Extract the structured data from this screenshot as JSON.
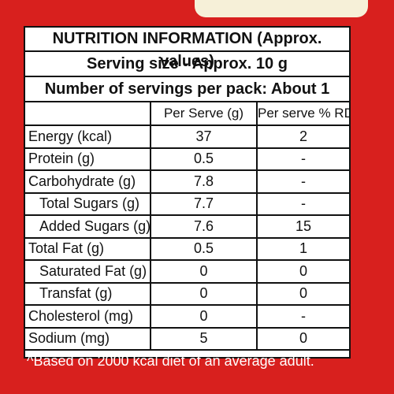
{
  "title": "NUTRITION INFORMATION (Approx. values)",
  "serving_size": "Serving size - Approx. 10 g",
  "servings_per_pack": "Number of servings per pack: About 1",
  "columns": [
    "",
    "Per Serve (g)",
    "Per serve % RDA^"
  ],
  "rows": [
    {
      "label": "Energy (kcal)",
      "per_serve": "37",
      "rda": "2",
      "indent": false
    },
    {
      "label": "Protein (g)",
      "per_serve": "0.5",
      "rda": "-",
      "indent": false
    },
    {
      "label": "Carbohydrate (g)",
      "per_serve": "7.8",
      "rda": "-",
      "indent": false
    },
    {
      "label": "Total Sugars (g)",
      "per_serve": "7.7",
      "rda": "-",
      "indent": true
    },
    {
      "label": "Added Sugars (g)",
      "per_serve": "7.6",
      "rda": "15",
      "indent": true
    },
    {
      "label": "Total Fat (g)",
      "per_serve": "0.5",
      "rda": "1",
      "indent": false
    },
    {
      "label": "Saturated Fat (g)",
      "per_serve": "0",
      "rda": "0",
      "indent": true
    },
    {
      "label": "Transfat (g)",
      "per_serve": "0",
      "rda": "0",
      "indent": true
    },
    {
      "label": "Cholesterol (mg)",
      "per_serve": "0",
      "rda": "-",
      "indent": false
    },
    {
      "label": "Sodium (mg)",
      "per_serve": "5",
      "rda": "0",
      "indent": false
    }
  ],
  "footnote": "^Based on 2000 kcal diet of an average adult.",
  "colors": {
    "background": "#d8201e",
    "panel": "#ffffff",
    "text": "#111111"
  }
}
